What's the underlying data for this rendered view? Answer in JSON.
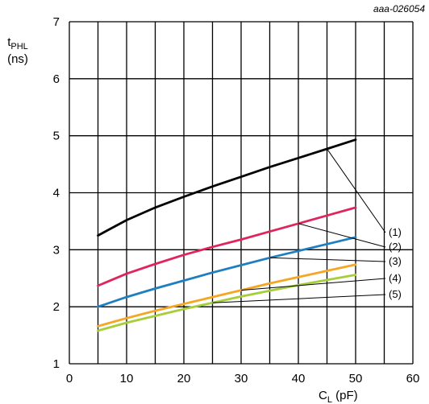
{
  "figure_id": "aaa-026054",
  "chart_data": {
    "type": "line",
    "title": "",
    "xlabel": "C",
    "xlabel_sub": "L",
    "xlabel_unit": " (pF)",
    "ylabel": "t",
    "ylabel_sub": "PHL",
    "ylabel_unit": "(ns)",
    "xlim": [
      0,
      60
    ],
    "ylim": [
      1,
      7
    ],
    "xticks": [
      "0",
      "10",
      "20",
      "30",
      "40",
      "50",
      "60"
    ],
    "yticks": [
      "1",
      "2",
      "3",
      "4",
      "5",
      "6",
      "7"
    ],
    "grid": true,
    "series": [
      {
        "name": "(1)",
        "color": "#000000",
        "x": [
          5,
          10,
          15,
          20,
          25,
          30,
          35,
          40,
          45,
          50
        ],
        "y": [
          3.25,
          3.52,
          3.74,
          3.93,
          4.11,
          4.28,
          4.45,
          4.61,
          4.77,
          4.93
        ],
        "label_y": 1.45
      },
      {
        "name": "(2)",
        "color": "#e0245e",
        "x": [
          5,
          10,
          15,
          20,
          25,
          30,
          35,
          40,
          45,
          50
        ],
        "y": [
          2.37,
          2.58,
          2.75,
          2.91,
          3.05,
          3.18,
          3.32,
          3.46,
          3.6,
          3.74
        ],
        "label_y": 1.45
      },
      {
        "name": "(3)",
        "color": "#1e7fc0",
        "x": [
          5,
          10,
          15,
          20,
          25,
          30,
          35,
          40,
          45,
          50
        ],
        "y": [
          2.0,
          2.17,
          2.32,
          2.46,
          2.6,
          2.73,
          2.86,
          2.98,
          3.1,
          3.22
        ],
        "label_y": 1.45
      },
      {
        "name": "(4)",
        "color": "#f5a623",
        "x": [
          5,
          10,
          15,
          20,
          25,
          30,
          35,
          40,
          45,
          50
        ],
        "y": [
          1.66,
          1.8,
          1.93,
          2.05,
          2.17,
          2.29,
          2.41,
          2.52,
          2.63,
          2.74
        ],
        "label_y": 1.45
      },
      {
        "name": "(5)",
        "color": "#a6ce39",
        "x": [
          5,
          10,
          15,
          20,
          25,
          30,
          35,
          40,
          45,
          50
        ],
        "y": [
          1.58,
          1.72,
          1.84,
          1.96,
          2.07,
          2.18,
          2.28,
          2.38,
          2.47,
          2.56
        ],
        "label_y": 1.45
      }
    ]
  }
}
